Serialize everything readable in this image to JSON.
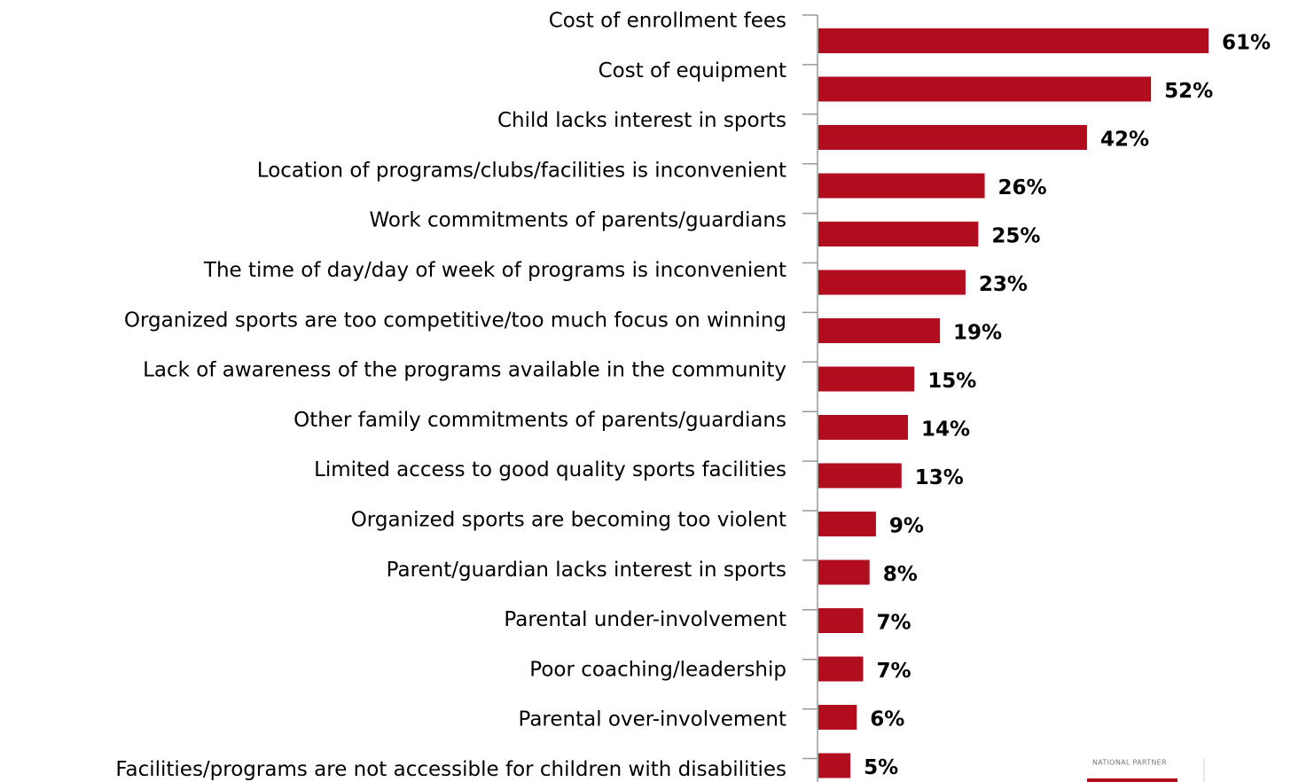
{
  "chart_data": {
    "type": "bar",
    "orientation": "horizontal",
    "categories": [
      "Cost of enrollment fees",
      "Cost of equipment",
      "Child lacks interest in sports",
      "Location of programs/clubs/facilities is inconvenient",
      "Work commitments of parents/guardians",
      "The time of day/day of week of programs is inconvenient",
      "Organized sports are too competitive/too much focus on winning",
      "Lack of awareness of the programs available in the community",
      "Other family commitments of parents/guardians",
      "Limited access to good quality sports facilities",
      "Organized sports are becoming too violent",
      "Parent/guardian lacks interest in sports",
      "Parental under-involvement",
      "Poor coaching/leadership",
      "Parental over-involvement",
      "Facilities/programs are not accessible for children with disabilities"
    ],
    "values": [
      61,
      52,
      42,
      26,
      25,
      23,
      19,
      15,
      14,
      13,
      9,
      8,
      7,
      7,
      6,
      5
    ],
    "value_labels": [
      "61%",
      "52%",
      "42%",
      "26%",
      "25%",
      "23%",
      "19%",
      "15%",
      "14%",
      "13%",
      "9%",
      "8%",
      "7%",
      "7%",
      "6%",
      "5%"
    ],
    "color": "#b10d1f",
    "annotation": "NATIONAL PARTNER"
  }
}
